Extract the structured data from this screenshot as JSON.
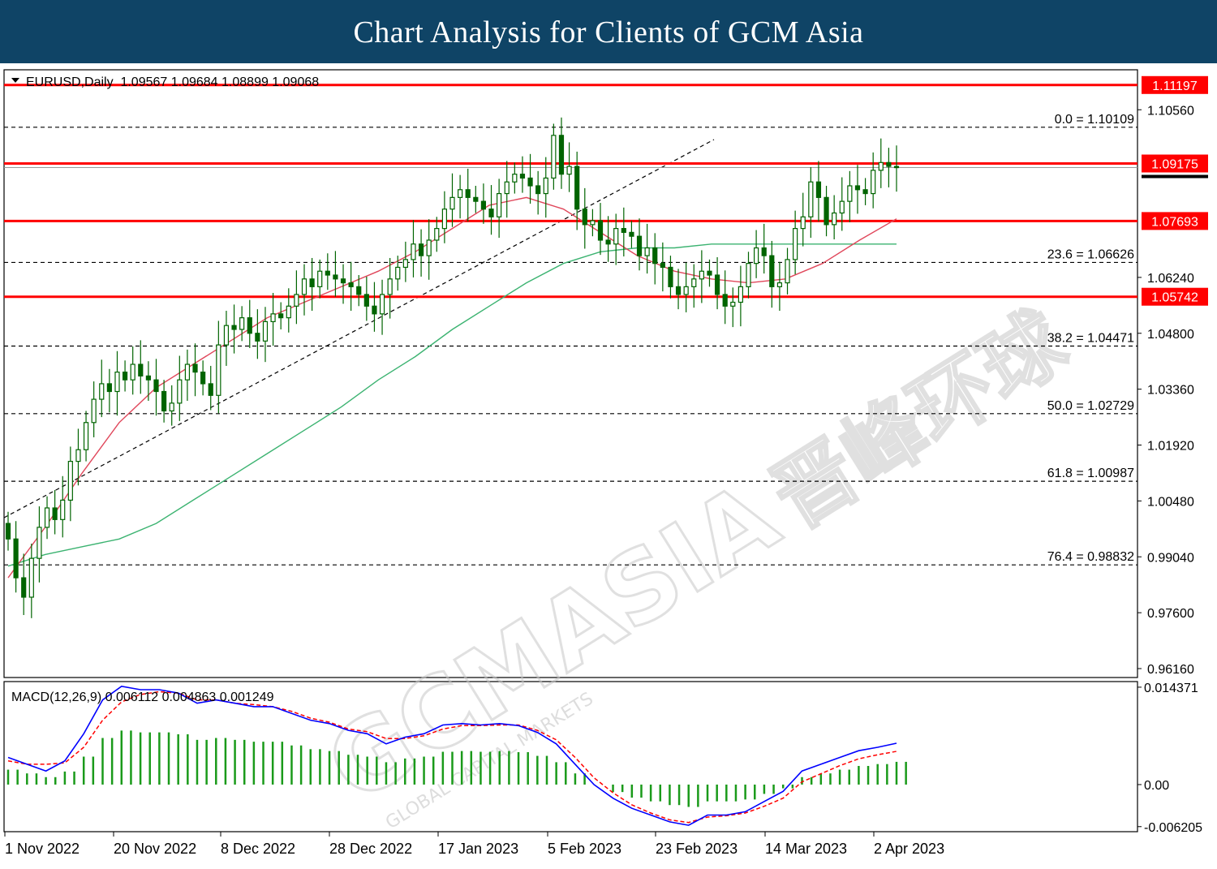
{
  "header": {
    "title": "Chart Analysis for Clients of GCM Asia"
  },
  "watermark": {
    "brand": "GCMASIA",
    "brand_cjk": "晋峰环球",
    "tagline": "GLOBAL CAPITAL MARKETS"
  },
  "colors": {
    "header_bg": "#0f4466",
    "candle": "#006400",
    "sma_fast": "#e0475b",
    "sma_slow": "#3cb371",
    "level_line": "#ff0000",
    "fib_line": "#000000",
    "macd_line": "#0000ff",
    "signal_line": "#ff0000",
    "histogram": "#1a9a1a"
  },
  "chart_data": [
    {
      "type": "candlestick",
      "info_label": "EURUSD,Daily  1.09567 1.09684 1.08899 1.09068",
      "symbol": "EURUSD",
      "timeframe": "Daily",
      "ohlc_last": {
        "open": 1.09567,
        "high": 1.09684,
        "low": 1.08899,
        "close": 1.09068
      },
      "ylim": [
        0.9593,
        1.1159
      ],
      "y_ticks": [
        "1.10560",
        "1.06240",
        "1.04800",
        "1.03360",
        "1.01920",
        "1.00480",
        "0.99040",
        "0.97600",
        "0.96160"
      ],
      "x_ticks": [
        "1 Nov 2022",
        "20 Nov 2022",
        "8 Dec 2022",
        "28 Dec 2022",
        "17 Jan 2023",
        "5 Feb 2023",
        "23 Feb 2023",
        "14 Mar 2023",
        "2 Apr 2023"
      ],
      "horizontal_levels": [
        {
          "label": "1.11197",
          "value": 1.11197
        },
        {
          "label": "1.09175",
          "value": 1.09175
        },
        {
          "label": "1.07693",
          "value": 1.07693
        },
        {
          "label": "1.05742",
          "value": 1.05742
        }
      ],
      "fibonacci_levels": [
        {
          "label": "0.0 = 1.10109",
          "value": 1.10109
        },
        {
          "label": "23.6 = 1.06626",
          "value": 1.06626
        },
        {
          "label": "38.2 = 1.04471",
          "value": 1.04471
        },
        {
          "label": "50.0 = 1.02729",
          "value": 1.02729
        },
        {
          "label": "61.8 = 1.00987",
          "value": 1.00987
        },
        {
          "label": "76.4 = 0.98832",
          "value": 0.98832
        }
      ],
      "candles_close": [
        0.995,
        0.985,
        0.98,
        0.99,
        0.998,
        1.003,
        1.0,
        1.005,
        1.015,
        1.018,
        1.025,
        1.031,
        1.035,
        1.033,
        1.038,
        1.036,
        1.04,
        1.037,
        1.036,
        1.033,
        1.028,
        1.03,
        1.036,
        1.04,
        1.038,
        1.035,
        1.032,
        1.045,
        1.05,
        1.049,
        1.052,
        1.048,
        1.046,
        1.051,
        1.053,
        1.052,
        1.055,
        1.058,
        1.062,
        1.06,
        1.064,
        1.063,
        1.062,
        1.061,
        1.06,
        1.058,
        1.055,
        1.053,
        1.058,
        1.062,
        1.065,
        1.067,
        1.071,
        1.068,
        1.072,
        1.075,
        1.08,
        1.083,
        1.085,
        1.083,
        1.082,
        1.08,
        1.078,
        1.084,
        1.087,
        1.089,
        1.088,
        1.086,
        1.084,
        1.088,
        1.099,
        1.089,
        1.091,
        1.08,
        1.076,
        1.077,
        1.072,
        1.071,
        1.075,
        1.074,
        1.073,
        1.068,
        1.07,
        1.066,
        1.065,
        1.06,
        1.058,
        1.06,
        1.062,
        1.064,
        1.063,
        1.058,
        1.055,
        1.056,
        1.06,
        1.066,
        1.07,
        1.068,
        1.06,
        1.061,
        1.067,
        1.075,
        1.078,
        1.087,
        1.083,
        1.076,
        1.079,
        1.082,
        1.086,
        1.085,
        1.084,
        1.09,
        1.092,
        1.091,
        1.0907
      ],
      "sma_fast": {
        "start": 0.985,
        "points": [
          0.985,
          0.998,
          1.012,
          1.025,
          1.034,
          1.04,
          1.046,
          1.052,
          1.056,
          1.06,
          1.064,
          1.069,
          1.075,
          1.081,
          1.083,
          1.08,
          1.074,
          1.068,
          1.064,
          1.062,
          1.061,
          1.062,
          1.066,
          1.072,
          1.0775
        ]
      },
      "sma_slow": {
        "start": 0.988,
        "points": [
          0.988,
          0.991,
          0.993,
          0.995,
          0.999,
          1.005,
          1.011,
          1.017,
          1.023,
          1.029,
          1.036,
          1.042,
          1.049,
          1.055,
          1.061,
          1.066,
          1.069,
          1.07,
          1.07,
          1.071,
          1.071,
          1.071,
          1.071,
          1.071,
          1.071
        ]
      }
    },
    {
      "type": "macd",
      "info_label": "MACD(12,26,9) 0.006112 0.004863 0.001249",
      "params": [
        12,
        26,
        9
      ],
      "values": {
        "macd": 0.006112,
        "signal": 0.004863,
        "histogram": 0.001249
      },
      "ylim": [
        -0.00695,
        0.0152
      ],
      "y_ticks": [
        "0.014371",
        "0.00",
        "-0.006205"
      ],
      "macd_line": [
        0.004,
        0.003,
        0.002,
        0.0035,
        0.0075,
        0.0125,
        0.0145,
        0.014,
        0.014,
        0.0135,
        0.012,
        0.0125,
        0.012,
        0.0115,
        0.0115,
        0.0105,
        0.0095,
        0.009,
        0.008,
        0.0075,
        0.006,
        0.007,
        0.0075,
        0.0088,
        0.009,
        0.0088,
        0.009,
        0.0087,
        0.0077,
        0.006,
        0.003,
        0.0,
        -0.002,
        -0.0035,
        -0.0045,
        -0.0055,
        -0.006,
        -0.0045,
        -0.0045,
        -0.004,
        -0.0025,
        -0.001,
        0.002,
        0.003,
        0.004,
        0.005,
        0.0055,
        0.0061
      ],
      "signal_line": [
        0.0035,
        0.003,
        0.003,
        0.0032,
        0.0055,
        0.0095,
        0.0122,
        0.0133,
        0.0137,
        0.0135,
        0.0125,
        0.0125,
        0.012,
        0.0118,
        0.0115,
        0.0108,
        0.0098,
        0.0092,
        0.0082,
        0.0078,
        0.0068,
        0.0068,
        0.0072,
        0.0082,
        0.0087,
        0.0087,
        0.0088,
        0.0088,
        0.008,
        0.0066,
        0.004,
        0.001,
        -0.0012,
        -0.003,
        -0.0042,
        -0.0052,
        -0.0056,
        -0.0048,
        -0.0046,
        -0.0042,
        -0.0032,
        -0.002,
        0.0004,
        0.0016,
        0.0028,
        0.0038,
        0.0044,
        0.0049
      ]
    }
  ]
}
